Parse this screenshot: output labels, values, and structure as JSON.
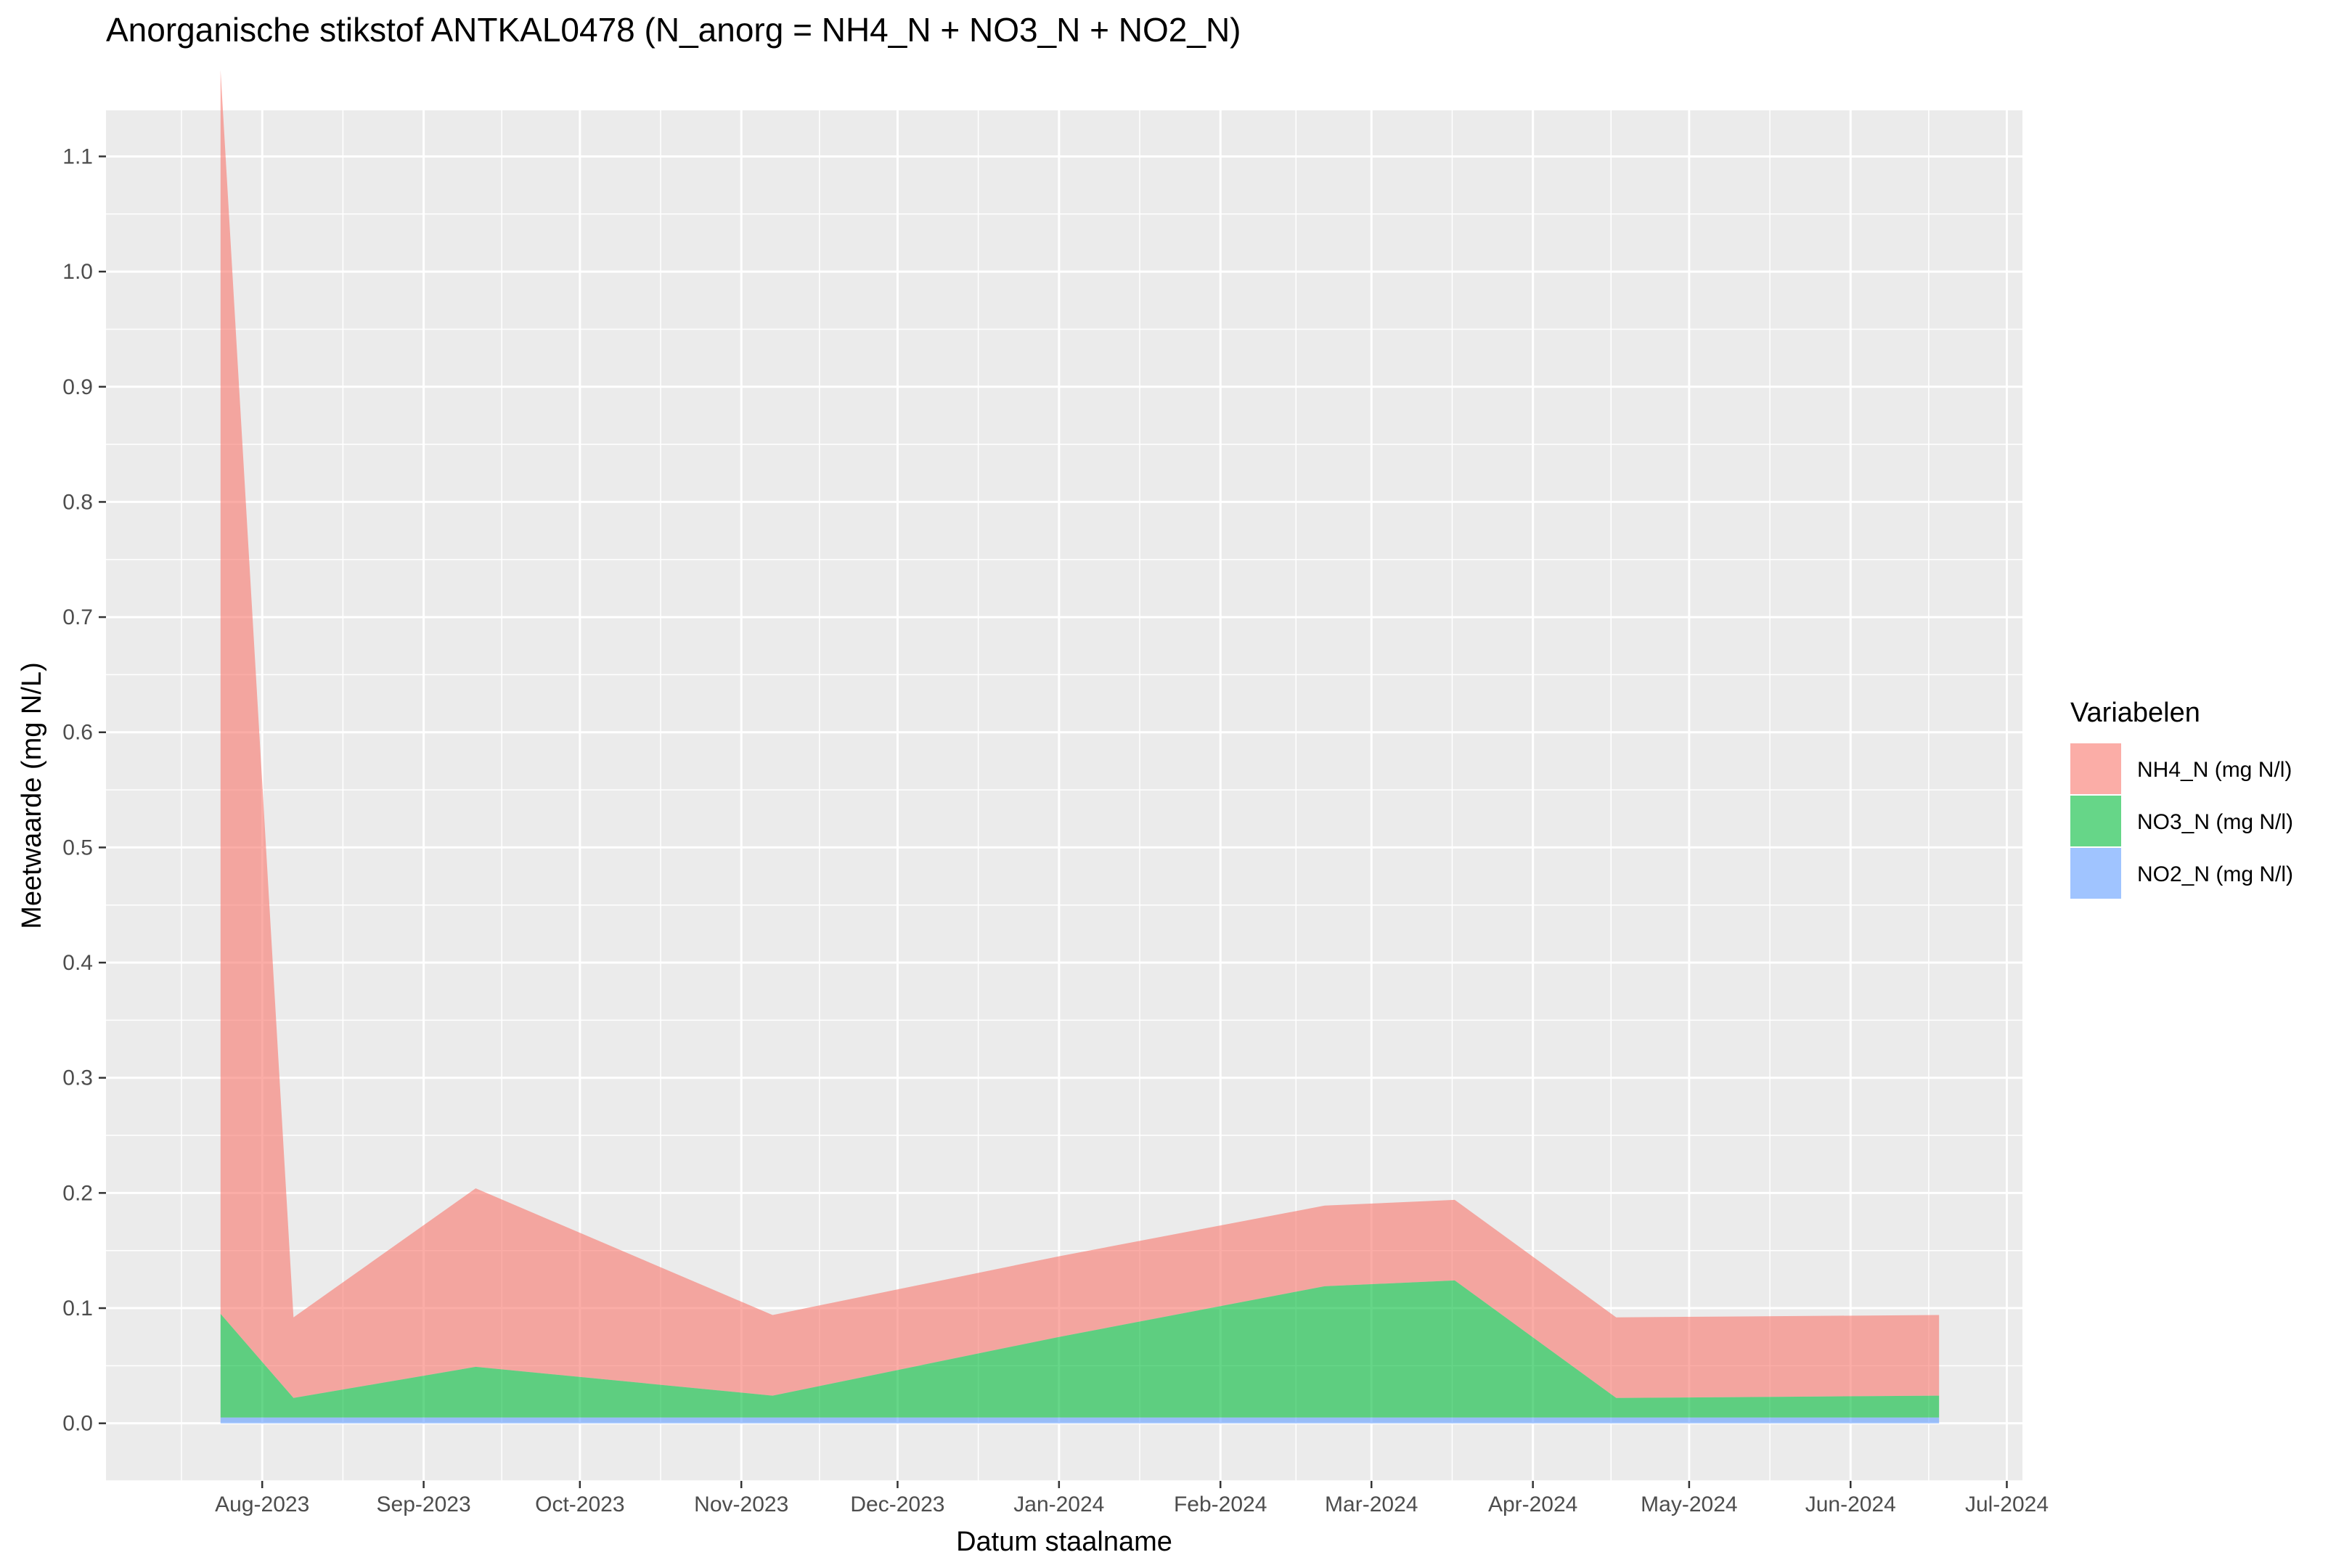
{
  "chart_data": {
    "type": "area",
    "title": "Anorganische stikstof ANTKAL0478 (N_anorg = NH4_N + NO3_N + NO2_N)",
    "xlabel": "Datum staalname",
    "ylabel": "Meetwaarde (mg N/L)",
    "stacked": true,
    "ylim": [
      -0.05,
      1.14
    ],
    "xlim": [
      "2023-07-02",
      "2024-07-04"
    ],
    "x_ticks": [
      "2023-08-01",
      "2023-09-01",
      "2023-10-01",
      "2023-11-01",
      "2023-12-01",
      "2024-01-01",
      "2024-02-01",
      "2024-03-01",
      "2024-04-01",
      "2024-05-01",
      "2024-06-01",
      "2024-07-01"
    ],
    "x_tick_labels": [
      "Aug-2023",
      "Sep-2023",
      "Oct-2023",
      "Nov-2023",
      "Dec-2023",
      "Jan-2024",
      "Feb-2024",
      "Mar-2024",
      "Apr-2024",
      "May-2024",
      "Jun-2024",
      "Jul-2024"
    ],
    "y_ticks": [
      0.0,
      0.1,
      0.2,
      0.3,
      0.4,
      0.5,
      0.6,
      0.7,
      0.8,
      0.9,
      1.0,
      1.1
    ],
    "y_tick_labels": [
      "0.0",
      "0.1",
      "0.2",
      "0.3",
      "0.4",
      "0.5",
      "0.6",
      "0.7",
      "0.8",
      "0.9",
      "1.0",
      "1.1"
    ],
    "grid": true,
    "background": "#EBEBEB",
    "legend": {
      "title": "Variabelen",
      "position": "right"
    },
    "x": [
      "2023-07-24",
      "2023-08-07",
      "2023-09-11",
      "2023-11-07",
      "2024-01-01",
      "2024-02-21",
      "2024-03-17",
      "2024-04-17",
      "2024-06-18"
    ],
    "series": [
      {
        "name": "NH4_N (mg N/l)",
        "color": "#F8766D",
        "values": [
          1.08,
          0.07,
          0.155,
          0.07,
          0.07,
          0.07,
          0.07,
          0.07,
          0.07
        ]
      },
      {
        "name": "NO3_N (mg N/l)",
        "color": "#00BA38",
        "values": [
          0.09,
          0.017,
          0.044,
          0.019,
          0.07,
          0.114,
          0.119,
          0.017,
          0.019
        ]
      },
      {
        "name": "NO2_N (mg N/l)",
        "color": "#619CFF",
        "values": [
          0.005,
          0.005,
          0.005,
          0.005,
          0.005,
          0.005,
          0.005,
          0.005,
          0.005
        ]
      }
    ]
  }
}
